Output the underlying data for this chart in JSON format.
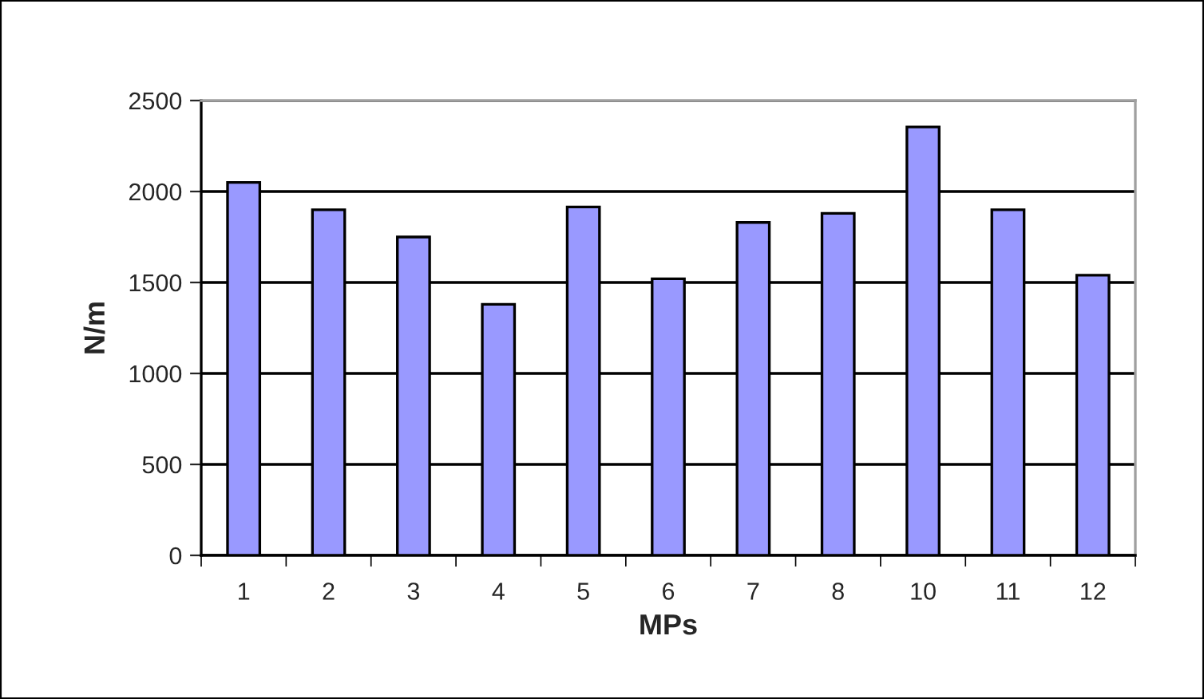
{
  "chart_data": {
    "type": "bar",
    "xlabel": "MPs",
    "ylabel": "N/m",
    "categories": [
      "1",
      "2",
      "3",
      "4",
      "5",
      "6",
      "7",
      "8",
      "10",
      "11",
      "12"
    ],
    "values": [
      2050,
      1900,
      1750,
      1380,
      1915,
      1520,
      1830,
      1880,
      2355,
      1900,
      1540
    ],
    "color": "#9999ff",
    "ylim": [
      0,
      2500
    ],
    "yticks": [
      0,
      500,
      1000,
      1500,
      2000,
      2500
    ],
    "grid": "y"
  }
}
